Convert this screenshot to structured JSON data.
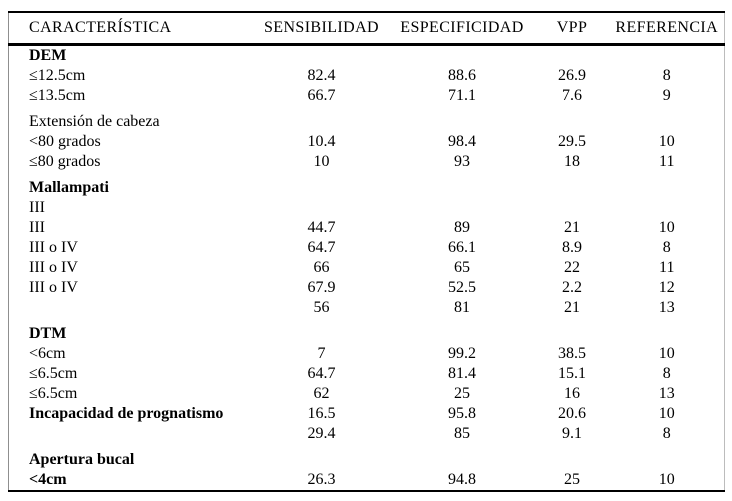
{
  "colors": {
    "text": "#000000",
    "background": "#ffffff",
    "rule": "#000000",
    "frame": "#9a9a9a"
  },
  "chart_data": {
    "type": "table",
    "title": "",
    "columns": [
      "CARACTERÍSTICA",
      "SENSIBILIDAD",
      "ESPECIFICIDAD",
      "VPP",
      "REFERENCIA"
    ],
    "rows": [
      {
        "label": "DEM",
        "bold": true,
        "spacer": false,
        "values": [
          "",
          "",
          "",
          ""
        ]
      },
      {
        "label": "≤12.5cm",
        "bold": false,
        "spacer": false,
        "values": [
          "82.4",
          "88.6",
          "26.9",
          "8"
        ]
      },
      {
        "label": "≤13.5cm",
        "bold": false,
        "spacer": false,
        "values": [
          "66.7",
          "71.1",
          "7.6",
          "9"
        ]
      },
      {
        "label": "Extensión de cabeza",
        "bold": false,
        "spacer": true,
        "values": [
          "",
          "",
          "",
          ""
        ]
      },
      {
        "label": "<80 grados",
        "bold": false,
        "spacer": false,
        "values": [
          "10.4",
          "98.4",
          "29.5",
          "10"
        ]
      },
      {
        "label": "≤80 grados",
        "bold": false,
        "spacer": false,
        "values": [
          "10",
          "93",
          "18",
          "11"
        ]
      },
      {
        "label": "Mallampati",
        "bold": true,
        "spacer": true,
        "values": [
          "",
          "",
          "",
          ""
        ]
      },
      {
        "label": "III",
        "bold": false,
        "spacer": false,
        "values": [
          "",
          "",
          "",
          ""
        ]
      },
      {
        "label": "III",
        "bold": false,
        "spacer": false,
        "values": [
          "44.7",
          "89",
          "21",
          "10"
        ]
      },
      {
        "label": "III o IV",
        "bold": false,
        "spacer": false,
        "values": [
          "64.7",
          "66.1",
          "8.9",
          "8"
        ]
      },
      {
        "label": "III o IV",
        "bold": false,
        "spacer": false,
        "values": [
          "66",
          "65",
          "22",
          "11"
        ]
      },
      {
        "label": "III o IV",
        "bold": false,
        "spacer": false,
        "values": [
          "67.9",
          "52.5",
          "2.2",
          "12"
        ]
      },
      {
        "label": "",
        "bold": false,
        "spacer": false,
        "values": [
          "56",
          "81",
          "21",
          "13"
        ]
      },
      {
        "label": "DTM",
        "bold": true,
        "spacer": true,
        "values": [
          "",
          "",
          "",
          ""
        ]
      },
      {
        "label": "<6cm",
        "bold": false,
        "spacer": false,
        "values": [
          "7",
          "99.2",
          "38.5",
          "10"
        ]
      },
      {
        "label": "≤6.5cm",
        "bold": false,
        "spacer": false,
        "values": [
          "64.7",
          "81.4",
          "15.1",
          "8"
        ]
      },
      {
        "label": "≤6.5cm",
        "bold": false,
        "spacer": false,
        "values": [
          "62",
          "25",
          "16",
          "13"
        ]
      },
      {
        "label": "Incapacidad de prognatismo",
        "bold": true,
        "spacer": false,
        "values": [
          "16.5",
          "95.8",
          "20.6",
          "10"
        ]
      },
      {
        "label": "",
        "bold": false,
        "spacer": false,
        "values": [
          "29.4",
          "85",
          "9.1",
          "8"
        ]
      },
      {
        "label": "Apertura bucal",
        "bold": true,
        "spacer": true,
        "values": [
          "",
          "",
          "",
          ""
        ]
      },
      {
        "label": "<4cm",
        "bold": true,
        "spacer": false,
        "values": [
          "26.3",
          "94.8",
          "25",
          "10"
        ]
      }
    ]
  }
}
